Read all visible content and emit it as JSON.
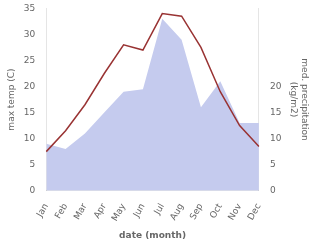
{
  "chart_data": {
    "type": "line",
    "categories": [
      "Jan",
      "Feb",
      "Mar",
      "Apr",
      "May",
      "Jun",
      "Jul",
      "Aug",
      "Sep",
      "Oct",
      "Nov",
      "Dec"
    ],
    "xlabel": "date (month)",
    "ylabel": "max temp (C)",
    "y2label": "med. precipitation\n(kg/m2)",
    "ylim": [
      0,
      35
    ],
    "yticks": [
      0,
      5,
      10,
      15,
      20,
      25,
      30,
      35
    ],
    "y2lim": [
      0,
      35
    ],
    "y2ticks": [
      0,
      5,
      10,
      15,
      20
    ],
    "grid": false,
    "series": [
      {
        "type": "line",
        "color": "#993333",
        "values": [
          7.5,
          11.5,
          16.5,
          22.5,
          28.0,
          27.0,
          34.0,
          33.5,
          27.5,
          19.0,
          12.5,
          8.5
        ]
      },
      {
        "type": "area",
        "axis": "y2",
        "color": "#c5cbee",
        "values": [
          9.0,
          8.0,
          11.0,
          15.0,
          19.0,
          19.5,
          33.0,
          29.0,
          16.0,
          21.0,
          13.0,
          13.0
        ]
      }
    ]
  }
}
